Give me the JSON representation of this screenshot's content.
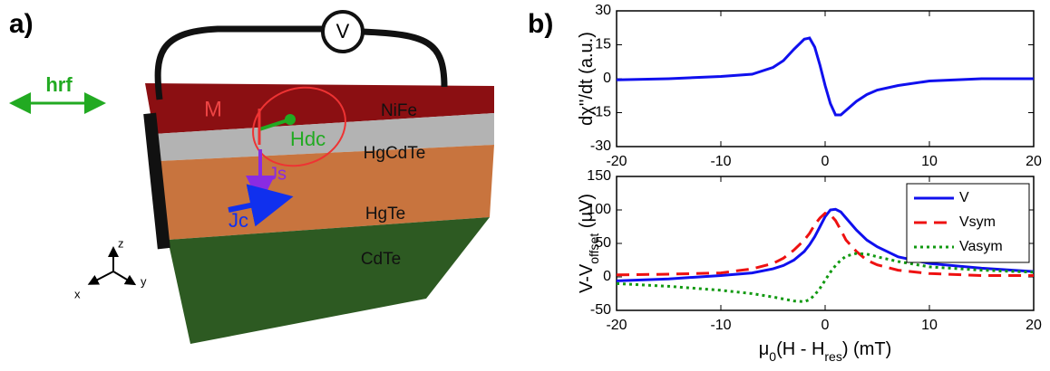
{
  "panel_a": {
    "label": "a)",
    "voltmeter": "V",
    "hrf": "hrf",
    "M": "M",
    "Hdc": "Hdc",
    "Js": "Js",
    "Jc": "Jc",
    "layers": [
      "NiFe",
      "HgCdTe",
      "HgTe",
      "CdTe"
    ],
    "axes": [
      "z",
      "y",
      "x"
    ]
  },
  "panel_b": {
    "label": "b)"
  },
  "chart_data": [
    {
      "type": "line",
      "ylabel": [
        {
          "t": "dχ''/dt (a.u.)"
        }
      ],
      "x": [
        -20,
        -15,
        -10,
        -7,
        -5,
        -4,
        -3,
        -2,
        -1.5,
        -1,
        -0.5,
        0,
        0.5,
        1,
        1.5,
        2,
        3,
        4,
        5,
        7,
        10,
        15,
        20
      ],
      "values": [
        -0.5,
        0,
        1,
        2,
        5,
        8,
        13,
        17.5,
        18,
        14,
        6,
        -3,
        -11,
        -16,
        -16,
        -14,
        -10,
        -7,
        -5,
        -3,
        -1,
        0,
        0
      ],
      "color": "#1010ee",
      "xlim": [
        -20,
        20
      ],
      "xticks": [
        -20,
        -10,
        0,
        10,
        20
      ],
      "ylim": [
        -30,
        30
      ],
      "yticks": [
        -30,
        -15,
        0,
        15,
        30
      ]
    },
    {
      "type": "line",
      "ylabel": [
        {
          "t": "V-V"
        },
        {
          "s": "offset"
        },
        {
          "t": " (μV)"
        }
      ],
      "xlabel": [
        {
          "t": "μ"
        },
        {
          "s": "0"
        },
        {
          "t": "(H - H"
        },
        {
          "s": "res"
        },
        {
          "t": ") (mT)"
        }
      ],
      "x": [
        -20,
        -15,
        -10,
        -7,
        -5,
        -4,
        -3,
        -2,
        -1.5,
        -1,
        -0.5,
        0,
        0.5,
        1,
        1.5,
        2,
        3,
        4,
        5,
        7,
        10,
        15,
        20
      ],
      "series": [
        {
          "name": "V",
          "color": "#1010ee",
          "style": "solid",
          "values": [
            -6,
            -3,
            2,
            6,
            12,
            17,
            25,
            38,
            48,
            60,
            75,
            90,
            100,
            101,
            97,
            88,
            70,
            55,
            45,
            30,
            20,
            13,
            8
          ]
        },
        {
          "name": "Vsym",
          "color": "#ee1111",
          "style": "dashed",
          "values": [
            3,
            4,
            6,
            12,
            20,
            28,
            40,
            55,
            65,
            78,
            88,
            95,
            93,
            84,
            70,
            55,
            38,
            25,
            18,
            10,
            5,
            2,
            2
          ]
        },
        {
          "name": "Vasym",
          "color": "#119911",
          "style": "dotted",
          "values": [
            -10,
            -14,
            -20,
            -25,
            -30,
            -33,
            -36,
            -37,
            -34,
            -27,
            -17,
            -5,
            7,
            17,
            25,
            31,
            35,
            34,
            30,
            23,
            15,
            10,
            7
          ]
        }
      ],
      "legend": "upper right",
      "xlim": [
        -20,
        20
      ],
      "xticks": [
        -20,
        -10,
        0,
        10,
        20
      ],
      "ylim": [
        -50,
        150
      ],
      "yticks": [
        -50,
        0,
        50,
        100,
        150
      ]
    }
  ]
}
